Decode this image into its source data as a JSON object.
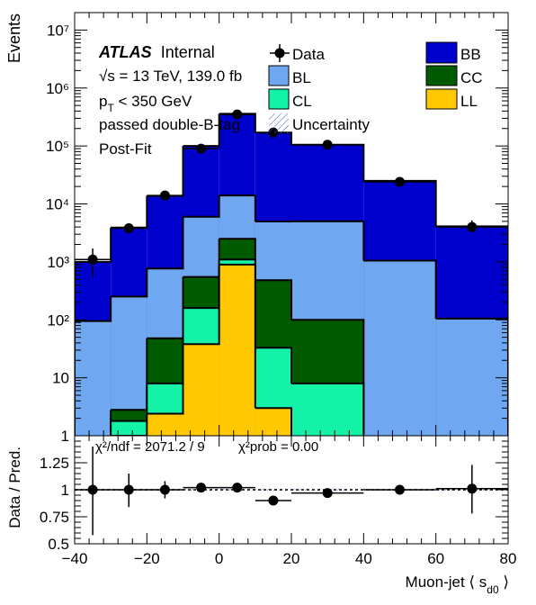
{
  "colors": {
    "BB": "#0000cc",
    "BL": "#6fa8f0",
    "CC": "#005a00",
    "CL": "#13f2a6",
    "LL": "#ffc800",
    "data": "#000000",
    "uncertainty": "#3d5ccc"
  },
  "labels": {
    "atlas": "ATLAS",
    "internal": "Internal",
    "energy": "√s = 13 TeV, 139.0 fb",
    "pt": "p",
    "pt_sub": "T",
    "pt_rest": " < 350 GeV",
    "selection": "passed double-B-tag",
    "fit": "Post-Fit",
    "ylabel": "Events",
    "ratio_ylabel": "Data / Pred.",
    "xlabel": "Muon-jet ⟨ s",
    "xlabel_sub": "d0",
    "xlabel_end": " ⟩",
    "chi2_ndf": "χ²/ndf = 2071.2 / 9",
    "chi2_prob": "χ²prob = 0.00"
  },
  "legend": [
    {
      "key": "Data",
      "label": "Data"
    },
    {
      "key": "BB",
      "label": "BB"
    },
    {
      "key": "BL",
      "label": "BL"
    },
    {
      "key": "CC",
      "label": "CC"
    },
    {
      "key": "CL",
      "label": "CL"
    },
    {
      "key": "LL",
      "label": "LL"
    },
    {
      "key": "Uncertainty",
      "label": "Uncertainty"
    }
  ],
  "chart_data": [
    {
      "type": "bar",
      "stacked": true,
      "log_y": true,
      "ylabel": "Events",
      "xlim": [
        -40,
        80
      ],
      "ylim": [
        1,
        20000000
      ],
      "y_tick_labels": [
        "1",
        "10",
        "10²",
        "10³",
        "10⁴",
        "10⁵",
        "10⁶",
        "10⁷"
      ],
      "bin_edges": [
        -40,
        -30,
        -20,
        -10,
        0,
        10,
        20,
        40,
        60,
        80
      ],
      "series": [
        {
          "name": "LL",
          "values": [
            0,
            1,
            2.4,
            38,
            900,
            3,
            0,
            0,
            0
          ]
        },
        {
          "name": "CL",
          "values": [
            0,
            0.8,
            5.6,
            122,
            200,
            30,
            8,
            0,
            0
          ]
        },
        {
          "name": "CC",
          "values": [
            0,
            1,
            40,
            390,
            1400,
            450,
            92,
            0,
            0
          ]
        },
        {
          "name": "BL",
          "values": [
            95,
            250,
            720,
            5450,
            11500,
            4500,
            4900,
            1050,
            105
          ]
        },
        {
          "name": "BB",
          "values": [
            905,
            3650,
            13000,
            94000,
            346000,
            165000,
            100000,
            24000,
            4000
          ]
        }
      ],
      "data_points": [
        {
          "x": -35,
          "y": 1100,
          "xerr": 5,
          "ylow": 550,
          "yhigh": 1700
        },
        {
          "x": -25,
          "y": 3800,
          "xerr": 5,
          "ylow": 3300,
          "yhigh": 4400
        },
        {
          "x": -15,
          "y": 14000,
          "xerr": 5,
          "ylow": 13000,
          "yhigh": 15000
        },
        {
          "x": -5,
          "y": 90000,
          "xerr": 5,
          "ylow": 88000,
          "yhigh": 92000
        },
        {
          "x": 5,
          "y": 350000,
          "xerr": 5,
          "ylow": 345000,
          "yhigh": 355000
        },
        {
          "x": 15,
          "y": 170000,
          "xerr": 5,
          "ylow": 167000,
          "yhigh": 173000
        },
        {
          "x": 30,
          "y": 105000,
          "xerr": 10,
          "ylow": 103000,
          "yhigh": 107000
        },
        {
          "x": 50,
          "y": 24000,
          "xerr": 10,
          "ylow": 23000,
          "yhigh": 25000
        },
        {
          "x": 70,
          "y": 4000,
          "xerr": 10,
          "ylow": 3200,
          "yhigh": 5200
        }
      ]
    },
    {
      "type": "scatter",
      "ylabel": "Data / Pred.",
      "xlabel": "Muon-jet ⟨ s d0 ⟩",
      "xlim": [
        -40,
        80
      ],
      "ylim": [
        0.5,
        1.5
      ],
      "x_ticks": [
        -40,
        -20,
        0,
        20,
        40,
        60,
        80
      ],
      "y_ticks": [
        0.5,
        0.75,
        1,
        1.25
      ],
      "y_tick_labels": [
        "0.5",
        "0.75",
        "1",
        "1.25"
      ],
      "reference_line": 1.0,
      "points": [
        {
          "x": -35,
          "y": 1.0,
          "xerr": 5,
          "ylow": 0.58,
          "yhigh": 1.4
        },
        {
          "x": -25,
          "y": 1.0,
          "xerr": 5,
          "ylow": 0.84,
          "yhigh": 1.15
        },
        {
          "x": -15,
          "y": 1.0,
          "xerr": 5,
          "ylow": 0.92,
          "yhigh": 1.08
        },
        {
          "x": -5,
          "y": 1.02,
          "xerr": 5,
          "ylow": 1.0,
          "yhigh": 1.04
        },
        {
          "x": 5,
          "y": 1.02,
          "xerr": 5,
          "ylow": 1.0,
          "yhigh": 1.04
        },
        {
          "x": 15,
          "y": 0.9,
          "xerr": 5,
          "ylow": 0.88,
          "yhigh": 0.92
        },
        {
          "x": 30,
          "y": 0.97,
          "xerr": 10,
          "ylow": 0.95,
          "yhigh": 0.99
        },
        {
          "x": 50,
          "y": 1.0,
          "xerr": 10,
          "ylow": 0.96,
          "yhigh": 1.04
        },
        {
          "x": 70,
          "y": 1.01,
          "xerr": 10,
          "ylow": 0.78,
          "yhigh": 1.23
        }
      ]
    }
  ]
}
